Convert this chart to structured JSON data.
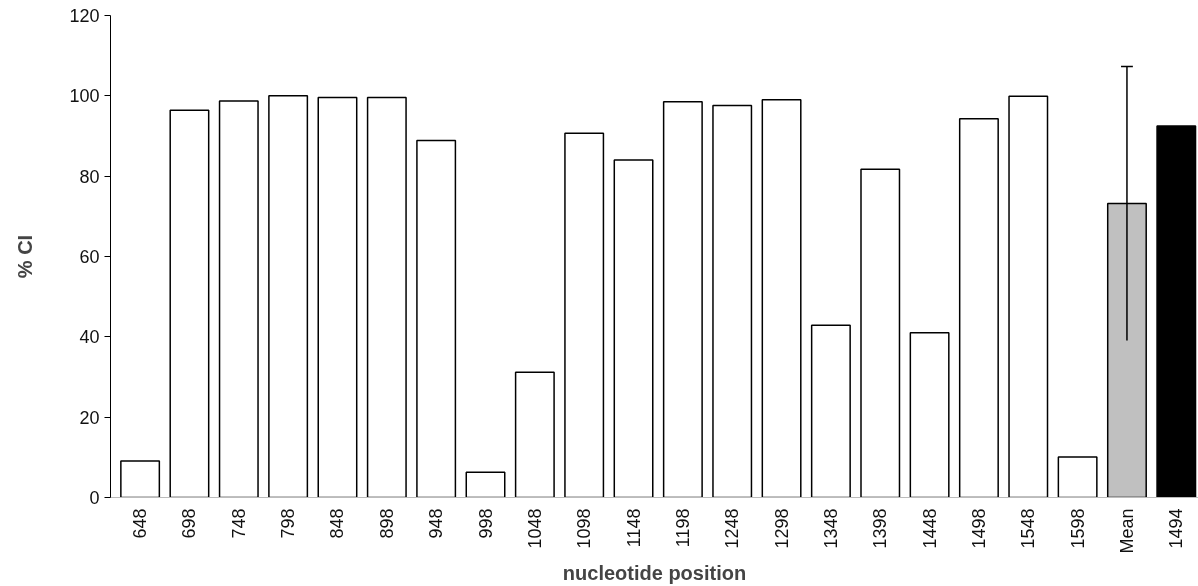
{
  "chart_data": {
    "type": "bar",
    "xlabel": "nucleotide position",
    "ylabel": "% CI",
    "categories": [
      "648",
      "698",
      "748",
      "798",
      "848",
      "898",
      "948",
      "998",
      "1048",
      "1098",
      "1148",
      "1198",
      "1248",
      "1298",
      "1348",
      "1398",
      "1448",
      "1498",
      "1548",
      "1598",
      "Mean",
      "1494"
    ],
    "values": [
      9.1,
      96.4,
      98.7,
      100,
      99.6,
      99.6,
      88.9,
      6.3,
      31.2,
      90.7,
      84.0,
      98.5,
      97.6,
      99.0,
      42.9,
      81.7,
      41.0,
      94.3,
      99.9,
      10.1,
      73.2,
      92.5
    ],
    "colors": [
      "#ffffff",
      "#ffffff",
      "#ffffff",
      "#ffffff",
      "#ffffff",
      "#ffffff",
      "#ffffff",
      "#ffffff",
      "#ffffff",
      "#ffffff",
      "#ffffff",
      "#ffffff",
      "#ffffff",
      "#ffffff",
      "#ffffff",
      "#ffffff",
      "#ffffff",
      "#ffffff",
      "#ffffff",
      "#ffffff",
      "#c0c0c0",
      "#000000"
    ],
    "errors": [
      null,
      null,
      null,
      null,
      null,
      null,
      null,
      null,
      null,
      null,
      null,
      null,
      null,
      null,
      null,
      null,
      null,
      null,
      null,
      null,
      34.1,
      null
    ],
    "ylim": [
      0,
      120
    ],
    "yticks": [
      0,
      20,
      40,
      60,
      80,
      100,
      120
    ],
    "grid": false
  }
}
